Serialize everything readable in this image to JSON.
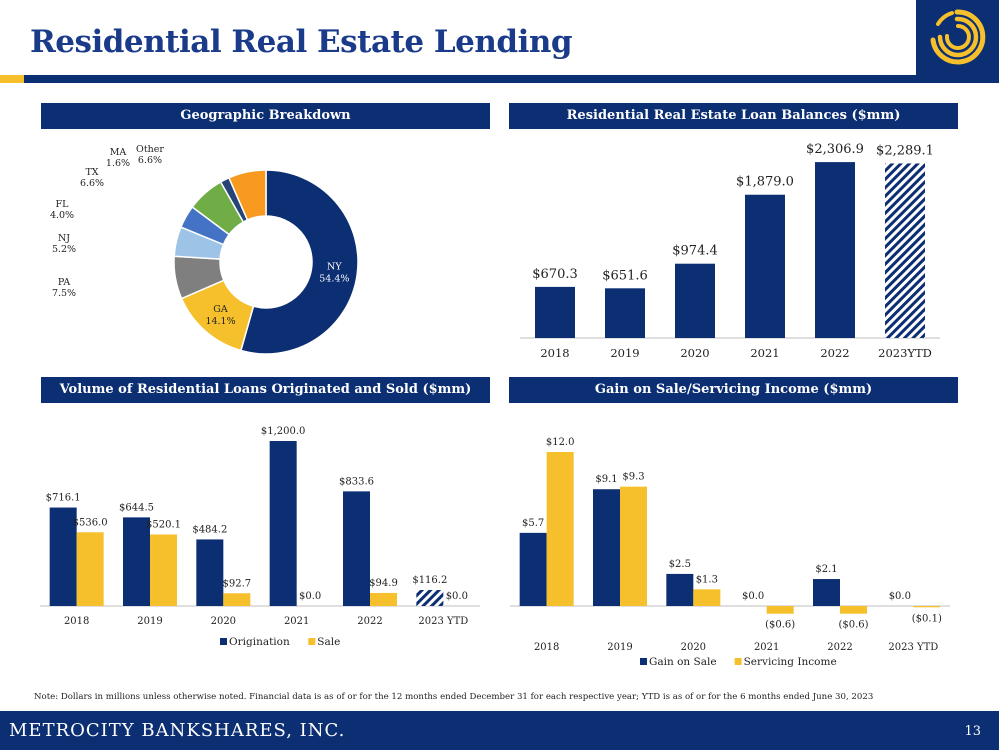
{
  "page": {
    "title": "Residential Real Estate Lending",
    "note": "Note: Dollars in millions unless otherwise noted. Financial data is as of or for the 12 months ended December 31 for each respective year; YTD is as of or for the 6 months ended June 30, 2023",
    "footer": "METROCITY BANKSHARES, INC.",
    "page_number": "13"
  },
  "colors": {
    "navy": "#0c2e72",
    "gold": "#f6c02c",
    "gray": "#7f7f7f",
    "lightblue": "#9dc3e6",
    "blue": "#4472c4",
    "green": "#70ad47",
    "darkblue": "#264478",
    "orange": "#f79a1f"
  },
  "chart_data": [
    {
      "id": "geo",
      "type": "pie",
      "title": "Geographic Breakdown",
      "slices": [
        {
          "label": "NY",
          "value": 54.4,
          "text": "54.4%",
          "color": "#0c2e72"
        },
        {
          "label": "GA",
          "value": 14.1,
          "text": "14.1%",
          "color": "#f6c02c"
        },
        {
          "label": "PA",
          "value": 7.5,
          "text": "7.5%",
          "color": "#7f7f7f"
        },
        {
          "label": "NJ",
          "value": 5.2,
          "text": "5.2%",
          "color": "#9dc3e6"
        },
        {
          "label": "FL",
          "value": 4.0,
          "text": "4.0%",
          "color": "#4472c4"
        },
        {
          "label": "TX",
          "value": 6.6,
          "text": "6.6%",
          "color": "#70ad47"
        },
        {
          "label": "MA",
          "value": 1.6,
          "text": "1.6%",
          "color": "#264478"
        },
        {
          "label": "Other",
          "value": 6.6,
          "text": "6.6%",
          "color": "#f79a1f"
        }
      ]
    },
    {
      "id": "balances",
      "type": "bar",
      "title": "Residential Real Estate Loan Balances ($mm)",
      "categories": [
        "2018",
        "2019",
        "2020",
        "2021",
        "2022",
        "2023YTD"
      ],
      "values": [
        670.3,
        651.6,
        974.4,
        1879.0,
        2306.9,
        2289.1
      ],
      "labels": [
        "$670.3",
        "$651.6",
        "$974.4",
        "$1,879.0",
        "$2,306.9",
        "$2,289.1"
      ],
      "hatched": [
        false,
        false,
        false,
        false,
        false,
        true
      ],
      "ylim": [
        0,
        2400
      ]
    },
    {
      "id": "volume",
      "type": "bar",
      "title": "Volume of Residential Loans Originated and Sold ($mm)",
      "categories": [
        "2018",
        "2019",
        "2020",
        "2021",
        "2022",
        "2023 YTD"
      ],
      "series": [
        {
          "name": "Origination",
          "values": [
            716.1,
            644.5,
            484.2,
            1200.0,
            833.6,
            116.2
          ],
          "labels": [
            "$716.1",
            "$644.5",
            "$484.2",
            "$1,200.0",
            "$833.6",
            "$116.2"
          ],
          "color": "#0c2e72"
        },
        {
          "name": "Sale",
          "values": [
            536.0,
            520.1,
            92.7,
            0.0,
            94.9,
            0.0
          ],
          "labels": [
            "$536.0",
            "$520.1",
            "$92.7",
            "$0.0",
            "$94.9",
            "$0.0"
          ],
          "color": "#f6c02c"
        }
      ],
      "legend": "bottom",
      "ylim": [
        0,
        1200
      ]
    },
    {
      "id": "gain",
      "type": "bar",
      "title": "Gain on Sale/Servicing Income ($mm)",
      "categories": [
        "2018",
        "2019",
        "2020",
        "2021",
        "2022",
        "2023 YTD"
      ],
      "series": [
        {
          "name": "Gain on Sale",
          "values": [
            5.7,
            9.1,
            2.5,
            0.0,
            2.1,
            0.0
          ],
          "labels": [
            "$5.7",
            "$9.1",
            "$2.5",
            "$0.0",
            "$2.1",
            "$0.0"
          ],
          "color": "#0c2e72"
        },
        {
          "name": "Servicing Income",
          "values": [
            12.0,
            9.3,
            1.3,
            -0.6,
            -0.6,
            -0.1
          ],
          "labels": [
            "$12.0",
            "$9.3",
            "$1.3",
            "($0.6)",
            "($0.6)",
            "($0.1)"
          ],
          "color": "#f6c02c"
        }
      ],
      "legend": "bottom",
      "ylim": [
        -0.6,
        12
      ]
    }
  ]
}
